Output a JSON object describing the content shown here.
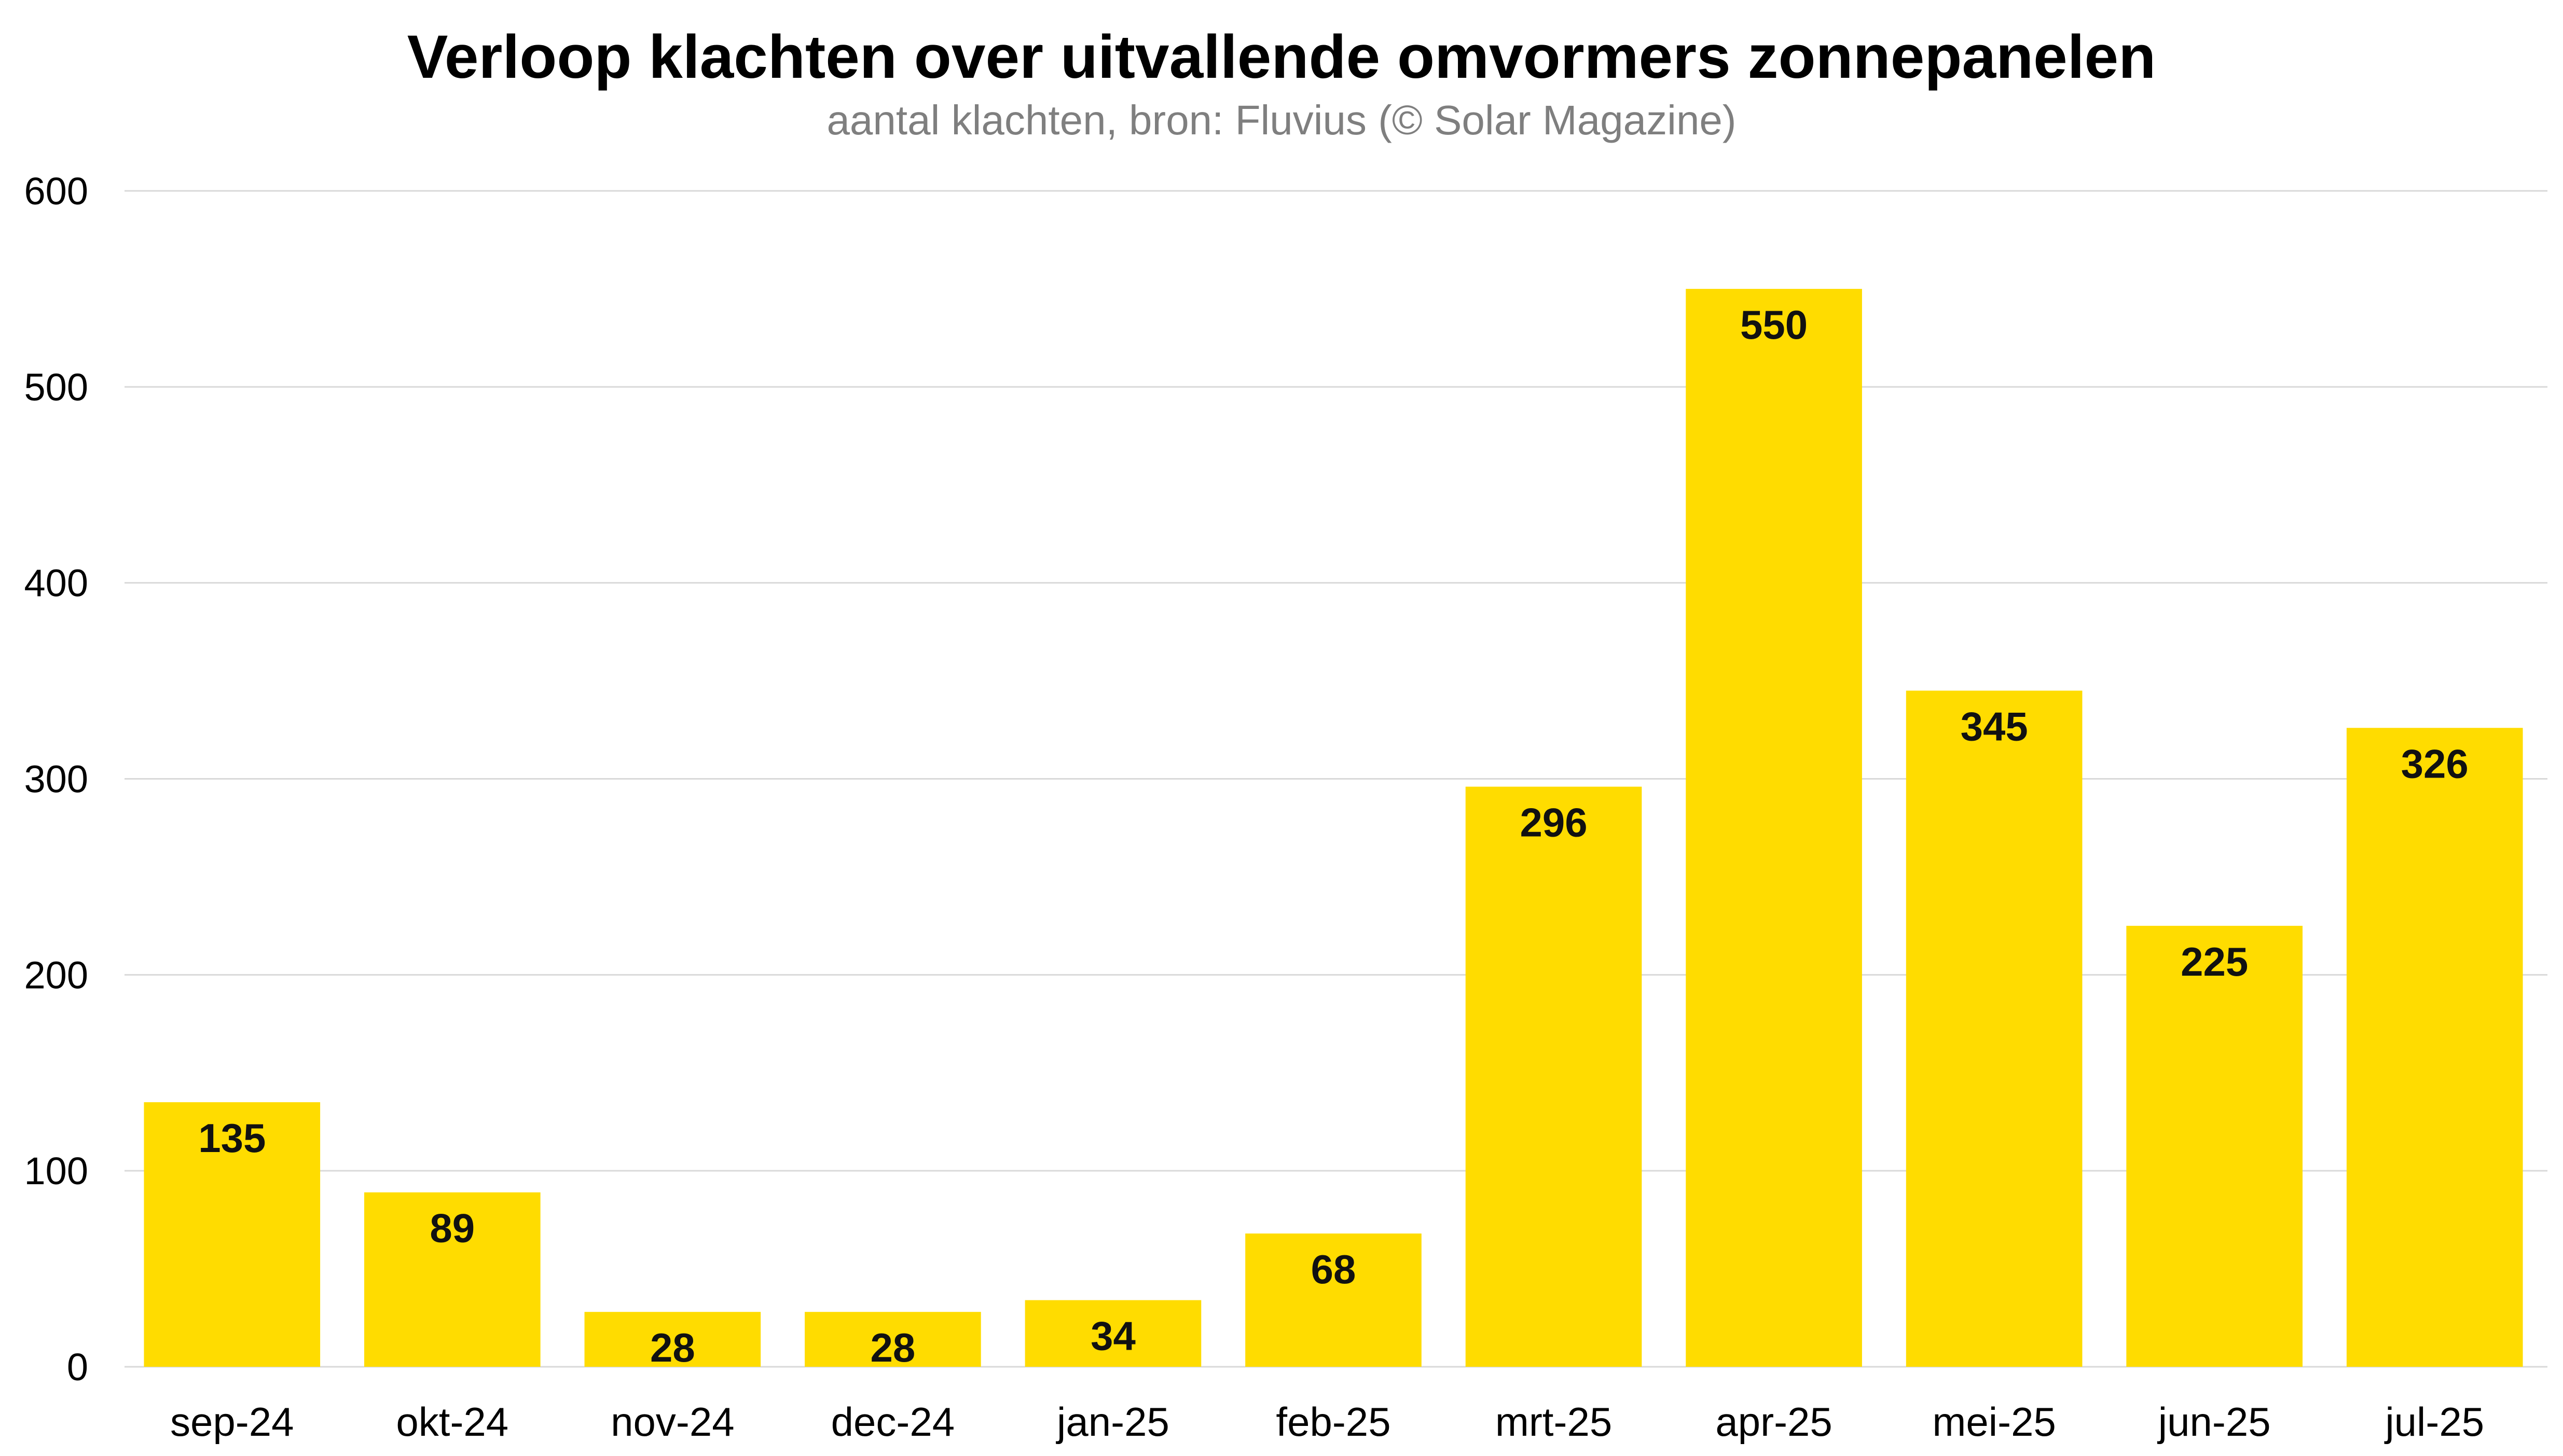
{
  "chart_data": {
    "type": "bar",
    "title": "Verloop klachten over uitvallende omvormers zonnepanelen",
    "subtitle": "aantal klachten, bron: Fluvius (© Solar Magazine)",
    "xlabel": "",
    "ylabel": "",
    "categories": [
      "sep-24",
      "okt-24",
      "nov-24",
      "dec-24",
      "jan-25",
      "feb-25",
      "mrt-25",
      "apr-25",
      "mei-25",
      "jun-25",
      "jul-25"
    ],
    "values": [
      135,
      89,
      28,
      28,
      34,
      68,
      296,
      550,
      345,
      225,
      326
    ],
    "data_labels": [
      "135",
      "89",
      "28",
      "28",
      "34",
      "68",
      "296",
      "550",
      "345",
      "225",
      "326"
    ],
    "ylim": [
      0,
      600
    ],
    "yticks": [
      0,
      100,
      200,
      300,
      400,
      500,
      600
    ],
    "ytick_labels": [
      "0",
      "100",
      "200",
      "300",
      "400",
      "500",
      "600"
    ],
    "grid": true,
    "legend": "none",
    "colors": {
      "bar": "#FFDC00",
      "grid": "#d9d9d9",
      "subtitle": "#7f7f7f"
    }
  }
}
